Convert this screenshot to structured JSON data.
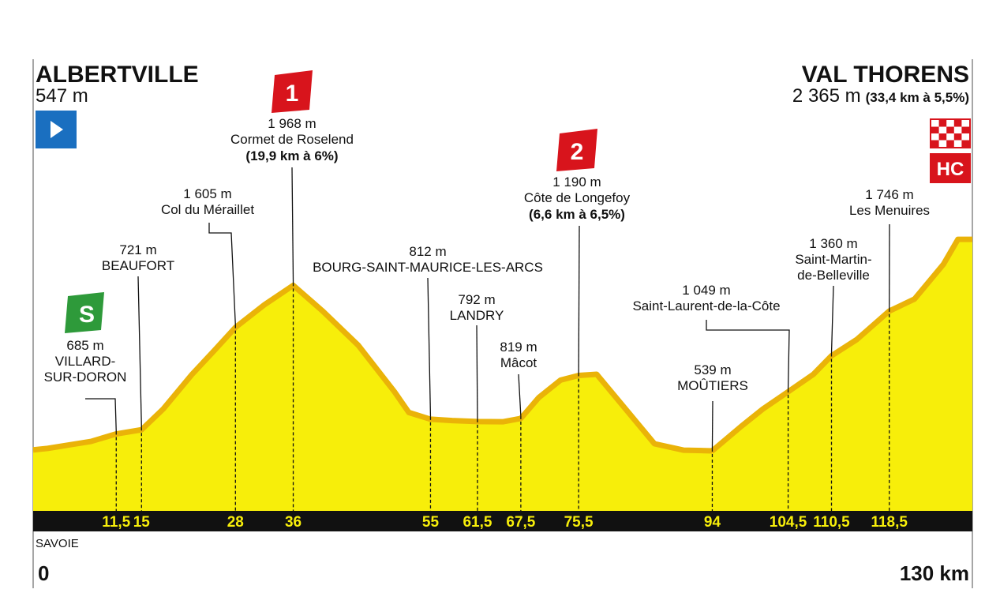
{
  "chart_data": {
    "type": "area",
    "start": "ALBERTVILLE",
    "finish": "VAL THORENS",
    "finish_climb": "(33,4 km à 5,5%)",
    "finish_category": "HC",
    "region": "SAVOIE",
    "end_label": "130 km",
    "xlim": [
      0,
      130
    ],
    "ylim": [
      0,
      3900
    ],
    "x": [
      0,
      2,
      5,
      8,
      11.5,
      15,
      18,
      22,
      25,
      28,
      32,
      36,
      40,
      45,
      50,
      52,
      55,
      58,
      61.5,
      65,
      67.5,
      70,
      73,
      75.5,
      78,
      82,
      86,
      90,
      94,
      98,
      101,
      104.5,
      108,
      110.5,
      114,
      118.5,
      122,
      126,
      128,
      130
    ],
    "values": [
      547,
      560,
      590,
      620,
      685,
      721,
      900,
      1200,
      1400,
      1605,
      1800,
      1968,
      1750,
      1450,
      1050,
      870,
      812,
      800,
      792,
      790,
      819,
      1000,
      1150,
      1190,
      1200,
      900,
      600,
      545,
      539,
      750,
      900,
      1049,
      1200,
      1360,
      1500,
      1746,
      1850,
      2150,
      2365,
      2365
    ],
    "value_labels": [
      "547 m",
      null,
      null,
      null,
      "685 m",
      "721 m",
      null,
      null,
      null,
      "1 605 m",
      null,
      "1 968 m",
      null,
      null,
      null,
      null,
      "812 m",
      null,
      "792 m",
      null,
      "819 m",
      null,
      null,
      "1 190 m",
      null,
      null,
      null,
      null,
      "539 m",
      null,
      null,
      "1 049 m",
      null,
      "1 360 m",
      null,
      "1 746 m",
      null,
      null,
      null,
      "2 365 m"
    ],
    "points": [
      null,
      null,
      null,
      null,
      {
        "name": [
          "VILLARD-",
          "SUR-DORON"
        ],
        "category": "S"
      },
      {
        "name": [
          "BEAUFORT"
        ]
      },
      null,
      null,
      null,
      {
        "name": [
          "Col du Méraillet"
        ]
      },
      null,
      {
        "name": [
          "Cormet de Roselend"
        ],
        "climb": "(19,9 km à 6%)",
        "category": "1"
      },
      null,
      null,
      null,
      null,
      {
        "name": [
          "BOURG-SAINT-MAURICE-LES-ARCS"
        ]
      },
      null,
      {
        "name": [
          "LANDRY"
        ]
      },
      null,
      {
        "name": [
          "Mâcot"
        ]
      },
      null,
      null,
      {
        "name": [
          "Côte de Longefoy"
        ],
        "climb": "(6,6 km à 6,5%)",
        "category": "2"
      },
      null,
      null,
      null,
      null,
      {
        "name": [
          "MOÛTIERS"
        ]
      },
      null,
      null,
      {
        "name": [
          "Saint-Laurent-de-la-Côte"
        ]
      },
      null,
      {
        "name": [
          "Saint-Martin-",
          "de-Belleville"
        ]
      },
      null,
      {
        "name": [
          "Les Menuires"
        ]
      },
      null,
      null,
      null,
      null
    ],
    "xticks": [
      {
        "value": 11.5,
        "label": "11,5"
      },
      15,
      28,
      36,
      55,
      {
        "value": 61.5,
        "label": "61,5"
      },
      {
        "value": 67.5,
        "label": "67,5"
      },
      {
        "value": 75.5,
        "label": "75,5"
      },
      94,
      {
        "value": 104.5,
        "label": "104,5"
      },
      {
        "value": 110.5,
        "label": "110,5"
      },
      {
        "value": 118.5,
        "label": "118,5"
      }
    ],
    "fill_color": "#f7ee0a",
    "edge_color": "#eab308"
  }
}
